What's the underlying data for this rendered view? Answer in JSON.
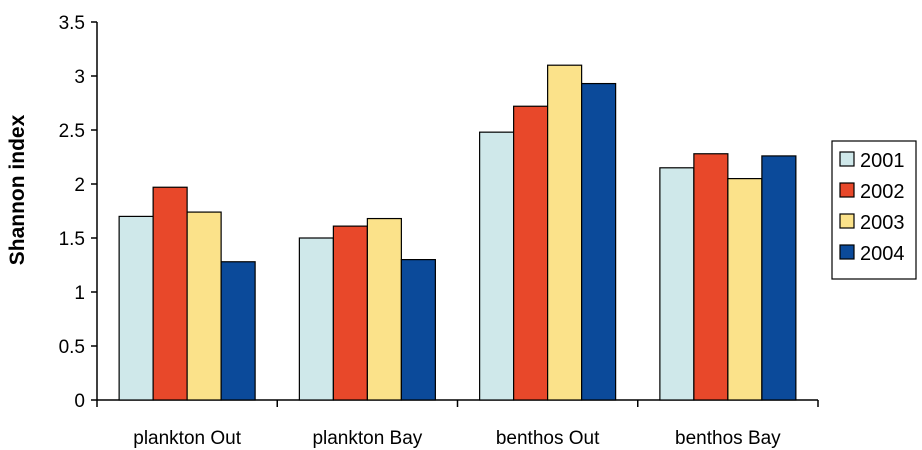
{
  "chart_data": {
    "type": "bar",
    "title": "",
    "xlabel": "",
    "ylabel": "Shannon index",
    "ylim": [
      0,
      3.5
    ],
    "yticks": [
      "0",
      "0.5",
      "1",
      "1.5",
      "2",
      "2.5",
      "3",
      "3.5"
    ],
    "grid": false,
    "legend_position": "right",
    "categories": [
      "plankton Out",
      "plankton Bay",
      "benthos Out",
      "benthos Bay"
    ],
    "series": [
      {
        "name": "2001",
        "color": "#cfe8ea",
        "values": [
          1.7,
          1.5,
          2.48,
          2.15
        ]
      },
      {
        "name": "2002",
        "color": "#e8482a",
        "values": [
          1.97,
          1.61,
          2.72,
          2.28
        ]
      },
      {
        "name": "2003",
        "color": "#fbe28a",
        "values": [
          1.74,
          1.68,
          3.1,
          2.05
        ]
      },
      {
        "name": "2004",
        "color": "#0b4a9a",
        "values": [
          1.28,
          1.3,
          2.93,
          2.26
        ]
      }
    ]
  }
}
